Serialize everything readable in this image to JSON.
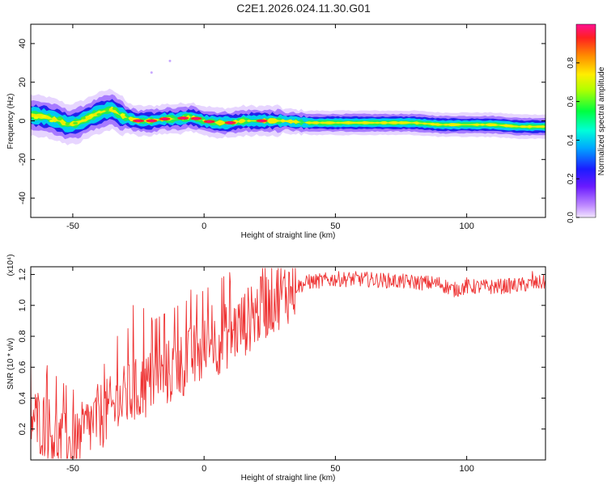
{
  "title": "C2E1.2026.024.11.30.G01",
  "chart_data": [
    {
      "type": "heatmap",
      "xlabel": "Height of straight line (km)",
      "ylabel": "Frequency (Hz)",
      "xlim": [
        -66,
        130
      ],
      "ylim": [
        -50,
        50
      ],
      "xticks": [
        -50,
        0,
        50,
        100
      ],
      "yticks": [
        -40,
        -20,
        0,
        20,
        40
      ],
      "colorbar": {
        "label": "Normalized spectral amplitude",
        "range": [
          0.0,
          1.0
        ],
        "ticks": [
          "0.0",
          "0.2",
          "0.4",
          "0.6",
          "0.8"
        ]
      },
      "ridge": {
        "x": [
          -66,
          -60,
          -55,
          -52,
          -48,
          -42,
          -38,
          -35,
          -32,
          -28,
          -25,
          -20,
          -15,
          -10,
          -5,
          0,
          5,
          10,
          15,
          20,
          30,
          40,
          50,
          60,
          70,
          80,
          90,
          95,
          100,
          110,
          120,
          130
        ],
        "y": [
          3,
          2,
          0,
          -2,
          -1,
          3,
          5,
          6,
          3,
          1,
          0,
          0,
          1,
          1,
          2,
          0,
          -1,
          -1,
          0,
          0,
          0,
          -1,
          -1,
          -1,
          -1,
          -1,
          -2,
          -2,
          -2,
          -2,
          -3,
          -3
        ]
      },
      "hotspots": [
        -25,
        -20,
        -15,
        -8,
        -3,
        2,
        10,
        22
      ]
    },
    {
      "type": "line",
      "xlabel": "Height of straight line (km)",
      "ylabel": "SNR (10 * v/v)",
      "multiplier": "(x10⁴)",
      "xlim": [
        -66,
        130
      ],
      "ylim": [
        0,
        1.25
      ],
      "xticks": [
        -50,
        0,
        50,
        100
      ],
      "yticks": [
        0.2,
        0.4,
        0.6,
        0.8,
        1.0,
        1.2
      ],
      "series": [
        {
          "color": "#ee3333",
          "envelope_x": [
            -66,
            -60,
            -55,
            -50,
            -45,
            -40,
            -35,
            -30,
            -25,
            -20,
            -15,
            -10,
            -5,
            0,
            5,
            10,
            15,
            20,
            25,
            30,
            35,
            40,
            50,
            60,
            70,
            80,
            90,
            95,
            100,
            110,
            120,
            130
          ],
          "envelope_y": [
            0.28,
            0.22,
            0.12,
            0.05,
            0.2,
            0.28,
            0.33,
            0.4,
            0.45,
            0.5,
            0.55,
            0.6,
            0.65,
            0.7,
            0.76,
            0.82,
            0.88,
            0.95,
            1.02,
            1.08,
            1.12,
            1.15,
            1.17,
            1.17,
            1.16,
            1.15,
            1.14,
            1.1,
            1.12,
            1.12,
            1.13,
            1.15
          ],
          "peaks": [
            [
              -66,
              0.45
            ],
            [
              -60,
              0.55
            ],
            [
              -50,
              0.3
            ],
            [
              -38,
              0.62
            ],
            [
              -33,
              0.8
            ],
            [
              -29,
              0.85
            ],
            [
              -27,
              1.0
            ],
            [
              -23,
              0.98
            ],
            [
              -20,
              0.92
            ],
            [
              -17,
              1.04
            ],
            [
              -10,
              1.05
            ],
            [
              -5,
              1.1
            ],
            [
              3,
              1.0
            ],
            [
              10,
              1.15
            ],
            [
              18,
              1.12
            ],
            [
              25,
              1.1
            ],
            [
              30,
              1.15
            ],
            [
              40,
              1.2
            ],
            [
              60,
              1.21
            ],
            [
              100,
              1.18
            ],
            [
              125,
              1.22
            ]
          ]
        }
      ]
    }
  ]
}
